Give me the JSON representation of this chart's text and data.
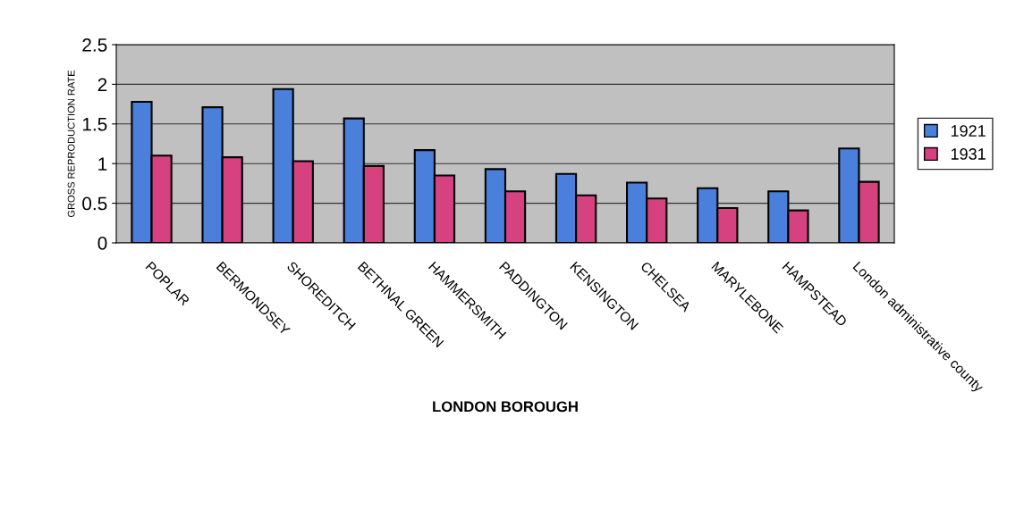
{
  "chart_data": {
    "type": "bar",
    "xlabel": "LONDON BOROUGH",
    "ylabel": "GROSS REPRODUCTION RATE",
    "categories": [
      "POPLAR",
      "BERMONDSEY",
      "SHOREDITCH",
      "BETHNAL GREEN",
      "HAMMERSMITH",
      "PADDINGTON",
      "KENSINGTON",
      "CHELSEA",
      "MARYLEBONE",
      "HAMPSTEAD",
      "London administrative county"
    ],
    "series": [
      {
        "name": "1921",
        "color": "#4a7fdb",
        "values": [
          1.78,
          1.71,
          1.94,
          1.57,
          1.17,
          0.93,
          0.87,
          0.76,
          0.69,
          0.65,
          1.19
        ]
      },
      {
        "name": "1931",
        "color": "#d6417f",
        "values": [
          1.1,
          1.08,
          1.03,
          0.97,
          0.85,
          0.65,
          0.6,
          0.56,
          0.44,
          0.41,
          0.77
        ]
      }
    ],
    "ylim": [
      0,
      2.5
    ],
    "yticks": [
      0,
      0.5,
      1,
      1.5,
      2,
      2.5
    ],
    "grid": "y",
    "legend": "right"
  }
}
